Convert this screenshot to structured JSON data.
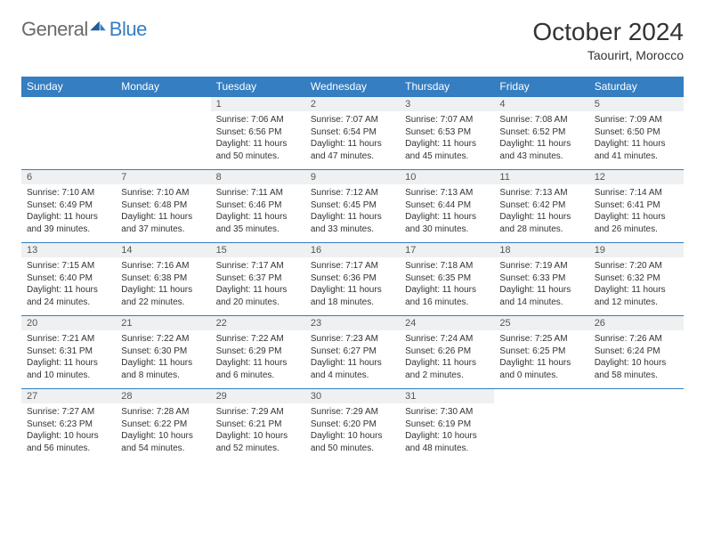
{
  "brand": {
    "part1": "General",
    "part2": "Blue"
  },
  "title": "October 2024",
  "location": "Taourirt, Morocco",
  "colors": {
    "header_bg": "#347ec1",
    "header_fg": "#ffffff",
    "daynum_bg": "#eef0f2",
    "rule": "#347ec1",
    "text": "#333333",
    "logo_gray": "#6a6a6a",
    "logo_blue": "#347ec1",
    "page_bg": "#ffffff"
  },
  "day_names": [
    "Sunday",
    "Monday",
    "Tuesday",
    "Wednesday",
    "Thursday",
    "Friday",
    "Saturday"
  ],
  "weeks": [
    [
      {
        "empty": true
      },
      {
        "empty": true
      },
      {
        "n": "1",
        "sr": "7:06 AM",
        "ss": "6:56 PM",
        "dl": "11 hours and 50 minutes."
      },
      {
        "n": "2",
        "sr": "7:07 AM",
        "ss": "6:54 PM",
        "dl": "11 hours and 47 minutes."
      },
      {
        "n": "3",
        "sr": "7:07 AM",
        "ss": "6:53 PM",
        "dl": "11 hours and 45 minutes."
      },
      {
        "n": "4",
        "sr": "7:08 AM",
        "ss": "6:52 PM",
        "dl": "11 hours and 43 minutes."
      },
      {
        "n": "5",
        "sr": "7:09 AM",
        "ss": "6:50 PM",
        "dl": "11 hours and 41 minutes."
      }
    ],
    [
      {
        "n": "6",
        "sr": "7:10 AM",
        "ss": "6:49 PM",
        "dl": "11 hours and 39 minutes."
      },
      {
        "n": "7",
        "sr": "7:10 AM",
        "ss": "6:48 PM",
        "dl": "11 hours and 37 minutes."
      },
      {
        "n": "8",
        "sr": "7:11 AM",
        "ss": "6:46 PM",
        "dl": "11 hours and 35 minutes."
      },
      {
        "n": "9",
        "sr": "7:12 AM",
        "ss": "6:45 PM",
        "dl": "11 hours and 33 minutes."
      },
      {
        "n": "10",
        "sr": "7:13 AM",
        "ss": "6:44 PM",
        "dl": "11 hours and 30 minutes."
      },
      {
        "n": "11",
        "sr": "7:13 AM",
        "ss": "6:42 PM",
        "dl": "11 hours and 28 minutes."
      },
      {
        "n": "12",
        "sr": "7:14 AM",
        "ss": "6:41 PM",
        "dl": "11 hours and 26 minutes."
      }
    ],
    [
      {
        "n": "13",
        "sr": "7:15 AM",
        "ss": "6:40 PM",
        "dl": "11 hours and 24 minutes."
      },
      {
        "n": "14",
        "sr": "7:16 AM",
        "ss": "6:38 PM",
        "dl": "11 hours and 22 minutes."
      },
      {
        "n": "15",
        "sr": "7:17 AM",
        "ss": "6:37 PM",
        "dl": "11 hours and 20 minutes."
      },
      {
        "n": "16",
        "sr": "7:17 AM",
        "ss": "6:36 PM",
        "dl": "11 hours and 18 minutes."
      },
      {
        "n": "17",
        "sr": "7:18 AM",
        "ss": "6:35 PM",
        "dl": "11 hours and 16 minutes."
      },
      {
        "n": "18",
        "sr": "7:19 AM",
        "ss": "6:33 PM",
        "dl": "11 hours and 14 minutes."
      },
      {
        "n": "19",
        "sr": "7:20 AM",
        "ss": "6:32 PM",
        "dl": "11 hours and 12 minutes."
      }
    ],
    [
      {
        "n": "20",
        "sr": "7:21 AM",
        "ss": "6:31 PM",
        "dl": "11 hours and 10 minutes."
      },
      {
        "n": "21",
        "sr": "7:22 AM",
        "ss": "6:30 PM",
        "dl": "11 hours and 8 minutes."
      },
      {
        "n": "22",
        "sr": "7:22 AM",
        "ss": "6:29 PM",
        "dl": "11 hours and 6 minutes."
      },
      {
        "n": "23",
        "sr": "7:23 AM",
        "ss": "6:27 PM",
        "dl": "11 hours and 4 minutes."
      },
      {
        "n": "24",
        "sr": "7:24 AM",
        "ss": "6:26 PM",
        "dl": "11 hours and 2 minutes."
      },
      {
        "n": "25",
        "sr": "7:25 AM",
        "ss": "6:25 PM",
        "dl": "11 hours and 0 minutes."
      },
      {
        "n": "26",
        "sr": "7:26 AM",
        "ss": "6:24 PM",
        "dl": "10 hours and 58 minutes."
      }
    ],
    [
      {
        "n": "27",
        "sr": "7:27 AM",
        "ss": "6:23 PM",
        "dl": "10 hours and 56 minutes."
      },
      {
        "n": "28",
        "sr": "7:28 AM",
        "ss": "6:22 PM",
        "dl": "10 hours and 54 minutes."
      },
      {
        "n": "29",
        "sr": "7:29 AM",
        "ss": "6:21 PM",
        "dl": "10 hours and 52 minutes."
      },
      {
        "n": "30",
        "sr": "7:29 AM",
        "ss": "6:20 PM",
        "dl": "10 hours and 50 minutes."
      },
      {
        "n": "31",
        "sr": "7:30 AM",
        "ss": "6:19 PM",
        "dl": "10 hours and 48 minutes."
      },
      {
        "empty": true
      },
      {
        "empty": true
      }
    ]
  ],
  "labels": {
    "sunrise": "Sunrise: ",
    "sunset": "Sunset: ",
    "daylight": "Daylight: "
  }
}
